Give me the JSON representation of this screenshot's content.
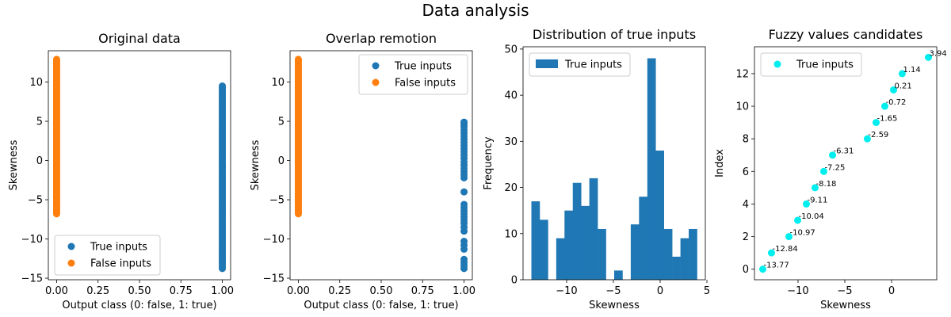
{
  "figure": {
    "title": "Data analysis"
  },
  "chart_data": [
    {
      "type": "scatter",
      "title": "Original data",
      "xlabel": "Output class (0: false, 1: true)",
      "ylabel": "Skewness",
      "xlim": [
        -0.05,
        1.05
      ],
      "ylim": [
        -15.2,
        14
      ],
      "xticks": [
        0.0,
        0.25,
        0.5,
        0.75,
        1.0
      ],
      "xtick_labels": [
        "0.00",
        "0.25",
        "0.50",
        "0.75",
        "1.00"
      ],
      "yticks": [
        -15,
        -10,
        -5,
        0,
        5,
        10
      ],
      "legend": "lower-left",
      "grid": false,
      "series": [
        {
          "name": "True inputs",
          "color": "#1f77b4",
          "x_value": 1,
          "y_min": -13.77,
          "y_max": 9.5,
          "count": 120
        },
        {
          "name": "False inputs",
          "color": "#ff7f0e",
          "x_value": 0,
          "y_min": -6.8,
          "y_max": 12.9,
          "count": 120
        }
      ]
    },
    {
      "type": "scatter",
      "title": "Overlap remotion",
      "xlabel": "Output class (0: false, 1: true)",
      "ylabel": "Skewness",
      "xlim": [
        -0.05,
        1.05
      ],
      "ylim": [
        -15.2,
        14
      ],
      "xticks": [
        0.0,
        0.25,
        0.5,
        0.75,
        1.0
      ],
      "xtick_labels": [
        "0.00",
        "0.25",
        "0.50",
        "0.75",
        "1.00"
      ],
      "yticks": [
        -15,
        -10,
        -5,
        0,
        5,
        10
      ],
      "legend": "upper-right",
      "grid": false,
      "series": [
        {
          "name": "True inputs",
          "color": "#1f77b4",
          "x_value": 1,
          "y_values": [
            4.9,
            4.6,
            4.3,
            3.9,
            3.5,
            3.1,
            2.7,
            2.3,
            1.9,
            1.5,
            1.1,
            0.7,
            0.3,
            -0.2,
            -0.6,
            -1.0,
            -1.4,
            -1.8,
            -2.2,
            -4.0,
            -5.6,
            -6.0,
            -6.4,
            -6.8,
            -7.2,
            -7.6,
            -8.0,
            -8.5,
            -9.0,
            -10.3,
            -10.8,
            -11.3,
            -12.6,
            -13.0,
            -13.4,
            -13.77
          ]
        },
        {
          "name": "False inputs",
          "color": "#ff7f0e",
          "x_value": 0,
          "y_min": -6.8,
          "y_max": 12.9,
          "count": 120
        }
      ]
    },
    {
      "type": "bar",
      "title": "Distribution of true inputs",
      "xlabel": "Skewness",
      "ylabel": "Frequency",
      "xlim": [
        -14.66,
        4.83
      ],
      "ylim": [
        0,
        50.5
      ],
      "xticks": [
        -10,
        -5,
        0,
        5
      ],
      "xtick_labels": [
        "−10",
        "−5",
        "0",
        "5"
      ],
      "yticks": [
        0,
        10,
        20,
        30,
        40,
        50
      ],
      "legend": "upper-left",
      "grid": false,
      "series": [
        {
          "name": "True inputs",
          "color": "#1f77b4",
          "bin_start": -13.77,
          "bin_width": 0.8855,
          "values": [
            17,
            13,
            0,
            9,
            15,
            21,
            16,
            22,
            11,
            0,
            2,
            0,
            12,
            18,
            48,
            28,
            11,
            5,
            9,
            11
          ]
        }
      ]
    },
    {
      "type": "scatter",
      "title": "Fuzzy values candidates",
      "xlabel": "Skewness",
      "ylabel": "Index",
      "xlim": [
        -14.66,
        4.83
      ],
      "ylim": [
        -0.65,
        13.65
      ],
      "xticks": [
        -10,
        -5,
        0
      ],
      "xtick_labels": [
        "−10",
        "−5",
        "0"
      ],
      "yticks": [
        0,
        2,
        4,
        6,
        8,
        10,
        12
      ],
      "legend": "upper-left",
      "grid": false,
      "series": [
        {
          "name": "True inputs",
          "color": "#00eeee",
          "x": [
            -13.77,
            -12.84,
            -10.97,
            -10.04,
            -9.11,
            -8.18,
            -7.25,
            -6.31,
            -2.59,
            -1.65,
            -0.72,
            0.21,
            1.14,
            3.94
          ],
          "y": [
            0,
            1,
            2,
            3,
            4,
            5,
            6,
            7,
            8,
            9,
            10,
            11,
            12,
            13
          ],
          "labels": [
            "-13.77",
            "-12.84",
            "-10.97",
            "-10.04",
            "-9.11",
            "-8.18",
            "-7.25",
            "-6.31",
            "-2.59",
            "-1.65",
            "-0.72",
            "0.21",
            "1.14",
            "3.94"
          ]
        }
      ]
    }
  ]
}
